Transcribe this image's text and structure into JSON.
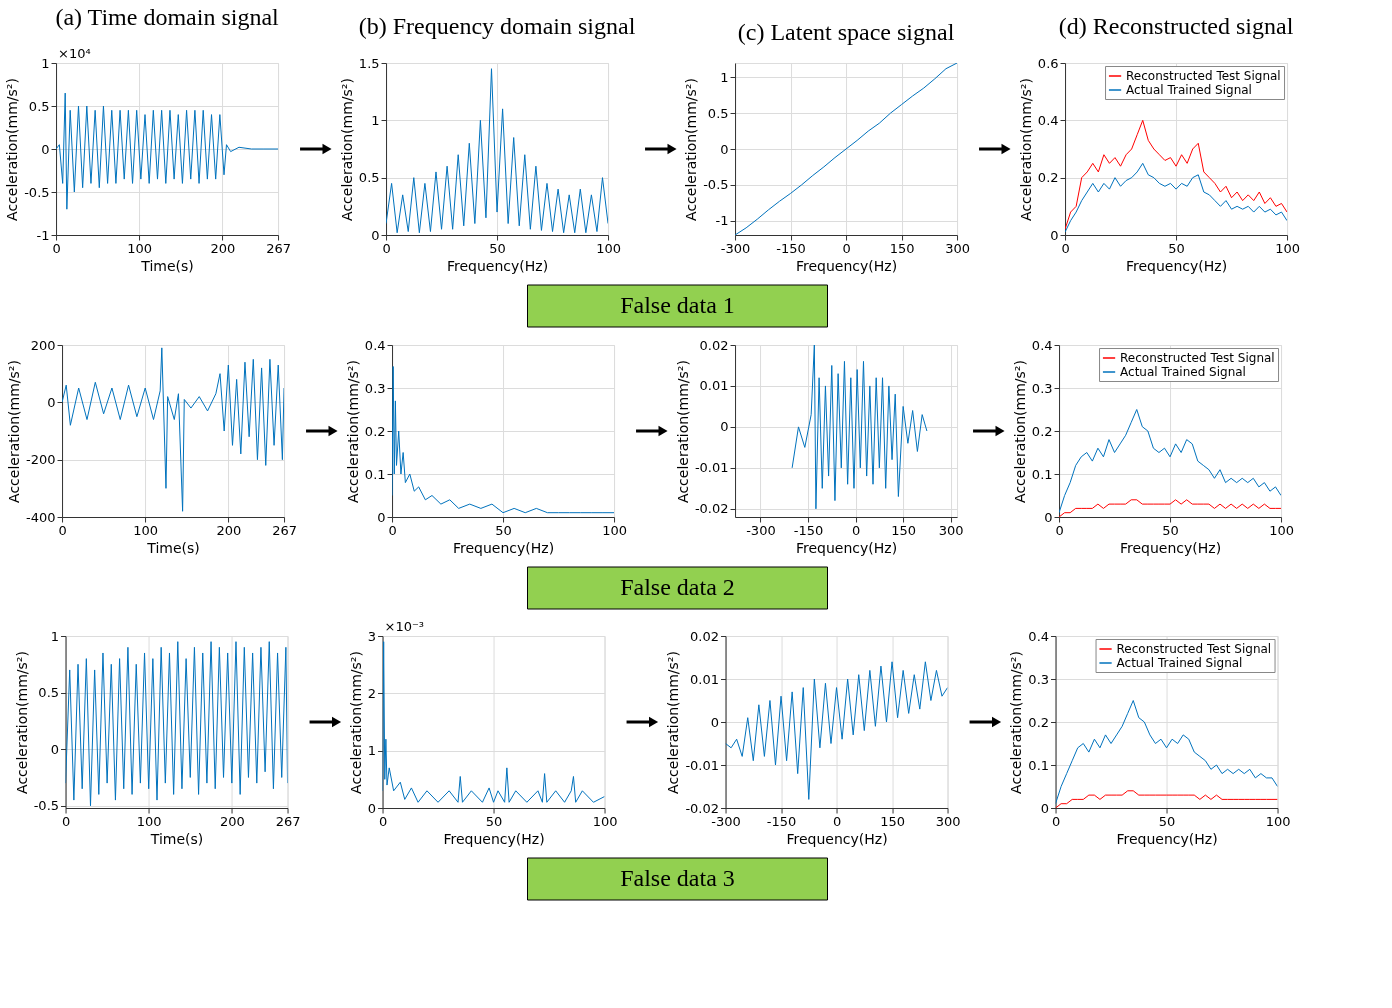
{
  "chart_data": [
    {
      "type": "line",
      "title": "(a) Time domain signal",
      "xlabel": "Time(s)",
      "ylabel": "Acceleration(mm/s²)",
      "annotations": [
        "×10⁴"
      ],
      "xlim": [
        0,
        267
      ],
      "xticks": [
        0,
        100,
        200,
        267
      ],
      "ylim": [
        -1,
        1
      ],
      "yticks": [
        -1,
        -0.5,
        0,
        0.5,
        1
      ],
      "grid": true,
      "series": [
        {
          "color": "#0072bd",
          "x": [
            0,
            4,
            8,
            11,
            13,
            17,
            22,
            27,
            32,
            37,
            42,
            47,
            52,
            57,
            62,
            67,
            72,
            77,
            82,
            87,
            92,
            97,
            102,
            107,
            112,
            117,
            122,
            127,
            132,
            137,
            142,
            147,
            152,
            157,
            162,
            167,
            172,
            177,
            182,
            187,
            192,
            197,
            202,
            205,
            210,
            220,
            235,
            250,
            267
          ],
          "values": [
            0,
            0.05,
            -0.4,
            0.65,
            -0.7,
            0.45,
            -0.5,
            0.5,
            -0.45,
            0.5,
            -0.4,
            0.45,
            -0.45,
            0.5,
            -0.4,
            0.45,
            -0.4,
            0.45,
            -0.35,
            0.45,
            -0.4,
            0.45,
            -0.35,
            0.4,
            -0.4,
            0.45,
            -0.35,
            0.45,
            -0.4,
            0.45,
            -0.35,
            0.4,
            -0.4,
            0.45,
            -0.35,
            0.45,
            -0.4,
            0.45,
            -0.35,
            0.4,
            -0.35,
            0.4,
            -0.3,
            0.05,
            -0.03,
            0.02,
            0,
            0,
            0
          ]
        }
      ]
    },
    {
      "type": "line",
      "title": "(b) Frequency domain signal",
      "xlabel": "Frequency(Hz)",
      "ylabel": "Acceleration(mm/s²)",
      "xlim": [
        0,
        100
      ],
      "xticks": [
        0,
        50,
        100
      ],
      "ylim": [
        0,
        1.5
      ],
      "yticks": [
        0,
        0.5,
        1,
        1.5
      ],
      "grid": true,
      "x": [
        0,
        2.5,
        5,
        7.5,
        10,
        12.5,
        15,
        17.5,
        20,
        22.5,
        25,
        27.5,
        30,
        32.5,
        35,
        37.5,
        40,
        42.5,
        45,
        47.5,
        50,
        52.5,
        55,
        57.5,
        60,
        62.5,
        65,
        67.5,
        70,
        72.5,
        75,
        77.5,
        80,
        82.5,
        85,
        87.5,
        90,
        92.5,
        95,
        97.5,
        100
      ],
      "series": [
        {
          "color": "#0072bd",
          "values": [
            0.1,
            0.45,
            0.02,
            0.35,
            0.03,
            0.5,
            0.02,
            0.45,
            0.03,
            0.55,
            0.05,
            0.6,
            0.05,
            0.7,
            0.08,
            0.8,
            0.1,
            1.0,
            0.15,
            1.45,
            0.2,
            1.1,
            0.1,
            0.85,
            0.08,
            0.7,
            0.05,
            0.6,
            0.04,
            0.45,
            0.03,
            0.4,
            0.02,
            0.35,
            0.02,
            0.4,
            0.02,
            0.35,
            0.03,
            0.5,
            0.1
          ]
        }
      ]
    },
    {
      "type": "line",
      "title": "(c) Latent space signal",
      "xlabel": "Frequency(Hz)",
      "ylabel": "Acceleration(mm/s²)",
      "xlim": [
        -300,
        300
      ],
      "xticks": [
        -300,
        -150,
        0,
        150,
        300
      ],
      "ylim": [
        -1.2,
        1.2
      ],
      "yticks": [
        -1,
        -0.5,
        0,
        0.5,
        1
      ],
      "grid": true,
      "series": [
        {
          "color": "#0072bd",
          "x": [
            -300,
            -270,
            -240,
            -210,
            -180,
            -150,
            -120,
            -90,
            -60,
            -30,
            0,
            30,
            60,
            90,
            120,
            150,
            180,
            210,
            240,
            270,
            300
          ],
          "values": [
            -1.2,
            -1.1,
            -0.98,
            -0.85,
            -0.73,
            -0.62,
            -0.5,
            -0.37,
            -0.25,
            -0.12,
            0.0,
            0.12,
            0.25,
            0.36,
            0.5,
            0.62,
            0.74,
            0.85,
            0.98,
            1.12,
            1.2
          ]
        }
      ]
    },
    {
      "type": "line",
      "title": "(d) Reconstructed signal",
      "xlabel": "Frequency(Hz)",
      "ylabel": "Acceleration(mm/s²)",
      "xlim": [
        0,
        100
      ],
      "xticks": [
        0,
        50,
        100
      ],
      "ylim": [
        0,
        0.6
      ],
      "yticks": [
        0,
        0.2,
        0.4,
        0.6
      ],
      "grid": true,
      "legend": "top right",
      "x": [
        0,
        2.5,
        5,
        7.5,
        10,
        12.5,
        15,
        17.5,
        20,
        22.5,
        25,
        27.5,
        30,
        32.5,
        35,
        37.5,
        40,
        42.5,
        45,
        47.5,
        50,
        52.5,
        55,
        57.5,
        60,
        62.5,
        65,
        67.5,
        70,
        72.5,
        75,
        77.5,
        80,
        82.5,
        85,
        87.5,
        90,
        92.5,
        95,
        97.5,
        100
      ],
      "series": [
        {
          "name": "Reconstructed Test Signal",
          "color": "#ff0000",
          "values": [
            0.02,
            0.08,
            0.1,
            0.2,
            0.22,
            0.25,
            0.22,
            0.28,
            0.25,
            0.27,
            0.24,
            0.28,
            0.3,
            0.35,
            0.4,
            0.33,
            0.3,
            0.28,
            0.26,
            0.27,
            0.24,
            0.28,
            0.25,
            0.3,
            0.32,
            0.22,
            0.2,
            0.18,
            0.15,
            0.17,
            0.13,
            0.15,
            0.12,
            0.14,
            0.12,
            0.15,
            0.11,
            0.13,
            0.1,
            0.11,
            0.08
          ]
        },
        {
          "name": "Actual Trained Signal",
          "color": "#0072bd",
          "values": [
            0.01,
            0.05,
            0.08,
            0.12,
            0.15,
            0.18,
            0.15,
            0.18,
            0.16,
            0.2,
            0.17,
            0.19,
            0.2,
            0.22,
            0.25,
            0.21,
            0.2,
            0.18,
            0.17,
            0.18,
            0.16,
            0.18,
            0.17,
            0.2,
            0.21,
            0.15,
            0.14,
            0.12,
            0.1,
            0.12,
            0.09,
            0.1,
            0.09,
            0.1,
            0.08,
            0.1,
            0.08,
            0.09,
            0.07,
            0.08,
            0.05
          ]
        }
      ]
    },
    {
      "type": "other",
      "title": "False data 1",
      "color": "#92d050"
    },
    {
      "type": "line",
      "xlabel": "Time(s)",
      "ylabel": "Acceleration(mm/s²)",
      "xlim": [
        0,
        267
      ],
      "xticks": [
        0,
        100,
        200,
        267
      ],
      "ylim": [
        -400,
        200
      ],
      "yticks": [
        -400,
        -200,
        0,
        200
      ],
      "grid": true,
      "series": [
        {
          "color": "#0072bd",
          "x": [
            0,
            5,
            10,
            20,
            30,
            40,
            50,
            60,
            70,
            80,
            90,
            100,
            110,
            118,
            120,
            125,
            127,
            135,
            140,
            145,
            147,
            155,
            165,
            175,
            185,
            190,
            195,
            200,
            205,
            210,
            215,
            220,
            225,
            230,
            235,
            240,
            245,
            250,
            255,
            260,
            265,
            267
          ],
          "values": [
            0,
            60,
            -80,
            50,
            -60,
            70,
            -40,
            50,
            -60,
            60,
            -50,
            50,
            -60,
            40,
            190,
            -300,
            20,
            -60,
            30,
            -380,
            10,
            -20,
            20,
            -30,
            30,
            100,
            -100,
            130,
            -150,
            80,
            -180,
            140,
            -120,
            150,
            -200,
            120,
            -220,
            150,
            -150,
            130,
            -200,
            50
          ]
        }
      ]
    },
    {
      "type": "line",
      "xlabel": "Frequency(Hz)",
      "ylabel": "Acceleration(mm/s²)",
      "xlim": [
        0,
        100
      ],
      "xticks": [
        0,
        50,
        100
      ],
      "ylim": [
        0,
        0.4
      ],
      "yticks": [
        0,
        0.1,
        0.2,
        0.3,
        0.4
      ],
      "grid": true,
      "series": [
        {
          "color": "#0072bd",
          "x": [
            0,
            0.5,
            1,
            1.5,
            2,
            3,
            4,
            5,
            6,
            8,
            10,
            12,
            15,
            18,
            22,
            26,
            30,
            35,
            40,
            45,
            50,
            55,
            60,
            65,
            70,
            75,
            80,
            85,
            90,
            95,
            100
          ],
          "values": [
            0.05,
            0.35,
            0.1,
            0.27,
            0.12,
            0.2,
            0.1,
            0.15,
            0.08,
            0.1,
            0.06,
            0.07,
            0.04,
            0.05,
            0.03,
            0.04,
            0.02,
            0.03,
            0.02,
            0.03,
            0.01,
            0.02,
            0.01,
            0.02,
            0.01,
            0.01,
            0.01,
            0.01,
            0.01,
            0.01,
            0.01
          ]
        }
      ]
    },
    {
      "type": "line",
      "xlabel": "Frequency(Hz)",
      "ylabel": "Acceleration(mm/s²)",
      "xlim": [
        -380,
        320
      ],
      "xticks": [
        -300,
        -150,
        0,
        150,
        300
      ],
      "ylim": [
        -0.022,
        0.02
      ],
      "yticks": [
        -0.02,
        -0.01,
        0,
        0.01,
        0.02
      ],
      "grid": true,
      "series": [
        {
          "color": "#0072bd",
          "x": [
            -200,
            -180,
            -160,
            -140,
            -130,
            -125,
            -115,
            -105,
            -95,
            -85,
            -75,
            -65,
            -55,
            -45,
            -35,
            -25,
            -15,
            -5,
            5,
            15,
            25,
            35,
            45,
            55,
            65,
            75,
            85,
            95,
            105,
            115,
            125,
            135,
            150,
            165,
            180,
            195,
            210,
            225
          ],
          "values": [
            -0.01,
            0.0,
            -0.005,
            0.003,
            0.02,
            -0.02,
            0.012,
            -0.015,
            0.01,
            -0.012,
            0.015,
            -0.018,
            0.013,
            -0.01,
            0.016,
            -0.014,
            0.012,
            -0.015,
            0.014,
            -0.01,
            0.016,
            -0.012,
            0.01,
            -0.014,
            0.012,
            -0.01,
            0.012,
            -0.015,
            0.01,
            -0.008,
            0.008,
            -0.017,
            0.005,
            -0.004,
            0.004,
            -0.006,
            0.003,
            -0.001
          ]
        }
      ]
    },
    {
      "type": "line",
      "xlabel": "Frequency(Hz)",
      "ylabel": "Acceleration(mm/s²)",
      "xlim": [
        0,
        100
      ],
      "xticks": [
        0,
        50,
        100
      ],
      "ylim": [
        0,
        0.4
      ],
      "yticks": [
        0,
        0.1,
        0.2,
        0.3,
        0.4
      ],
      "grid": true,
      "legend": "top right",
      "x": [
        0,
        2.5,
        5,
        7.5,
        10,
        12.5,
        15,
        17.5,
        20,
        22.5,
        25,
        27.5,
        30,
        32.5,
        35,
        37.5,
        40,
        42.5,
        45,
        47.5,
        50,
        52.5,
        55,
        57.5,
        60,
        62.5,
        65,
        67.5,
        70,
        72.5,
        75,
        77.5,
        80,
        82.5,
        85,
        87.5,
        90,
        92.5,
        95,
        97.5,
        100
      ],
      "series": [
        {
          "name": "Reconstructed Test Signal",
          "color": "#ff0000",
          "values": [
            0.0,
            0.01,
            0.01,
            0.02,
            0.02,
            0.02,
            0.02,
            0.03,
            0.02,
            0.03,
            0.03,
            0.03,
            0.03,
            0.04,
            0.04,
            0.03,
            0.03,
            0.03,
            0.03,
            0.03,
            0.03,
            0.04,
            0.03,
            0.04,
            0.03,
            0.03,
            0.03,
            0.03,
            0.02,
            0.03,
            0.02,
            0.03,
            0.02,
            0.03,
            0.02,
            0.03,
            0.02,
            0.03,
            0.02,
            0.02,
            0.02
          ]
        },
        {
          "name": "Actual Trained Signal",
          "color": "#0072bd",
          "values": [
            0.01,
            0.05,
            0.08,
            0.12,
            0.14,
            0.15,
            0.13,
            0.16,
            0.14,
            0.18,
            0.15,
            0.17,
            0.19,
            0.22,
            0.25,
            0.21,
            0.2,
            0.16,
            0.15,
            0.16,
            0.14,
            0.17,
            0.15,
            0.18,
            0.17,
            0.13,
            0.12,
            0.11,
            0.09,
            0.11,
            0.08,
            0.09,
            0.08,
            0.09,
            0.08,
            0.09,
            0.07,
            0.08,
            0.06,
            0.07,
            0.05
          ]
        }
      ]
    },
    {
      "type": "other",
      "title": "False data 2",
      "color": "#92d050"
    },
    {
      "type": "line",
      "xlabel": "Time(s)",
      "ylabel": "Acceleration(mm/s²)",
      "xlim": [
        0,
        267
      ],
      "xticks": [
        0,
        100,
        200,
        267
      ],
      "ylim": [
        -0.52,
        1
      ],
      "yticks": [
        -0.5,
        0,
        0.5,
        1
      ],
      "grid": true,
      "series": [
        {
          "color": "#0072bd",
          "x": [
            0,
            5,
            10,
            15,
            20,
            25,
            30,
            35,
            40,
            45,
            50,
            55,
            60,
            65,
            70,
            75,
            80,
            85,
            90,
            95,
            100,
            105,
            110,
            115,
            120,
            125,
            130,
            135,
            140,
            145,
            150,
            155,
            160,
            165,
            170,
            175,
            180,
            185,
            190,
            195,
            200,
            205,
            210,
            215,
            220,
            225,
            230,
            235,
            240,
            245,
            250,
            255,
            260,
            265,
            267
          ],
          "values": [
            -0.3,
            0.7,
            -0.45,
            0.75,
            -0.35,
            0.8,
            -0.5,
            0.7,
            -0.4,
            0.85,
            -0.3,
            0.75,
            -0.45,
            0.8,
            -0.35,
            0.9,
            -0.4,
            0.75,
            -0.3,
            0.85,
            -0.35,
            0.8,
            -0.45,
            0.9,
            -0.3,
            0.85,
            -0.4,
            0.95,
            -0.35,
            0.8,
            -0.25,
            0.9,
            -0.4,
            0.85,
            -0.3,
            0.95,
            -0.35,
            0.9,
            -0.25,
            0.85,
            -0.3,
            0.95,
            -0.4,
            0.9,
            -0.25,
            0.85,
            -0.3,
            0.9,
            -0.2,
            0.95,
            -0.35,
            0.85,
            -0.25,
            0.9,
            -0.3
          ]
        }
      ]
    },
    {
      "type": "line",
      "xlabel": "Frequency(Hz)",
      "ylabel": "Acceleration(mm/s²)",
      "annotations": [
        "×10⁻³"
      ],
      "xlim": [
        0,
        100
      ],
      "xticks": [
        0,
        50,
        100
      ],
      "ylim": [
        0,
        3
      ],
      "yticks": [
        0,
        1,
        2,
        3
      ],
      "grid": true,
      "series": [
        {
          "color": "#0072bd",
          "x": [
            0,
            0.5,
            1,
            1.5,
            2,
            3,
            5,
            8,
            10,
            13,
            16,
            20,
            25,
            30,
            34,
            35,
            36,
            40,
            45,
            48,
            50,
            52,
            55,
            56,
            57,
            60,
            65,
            70,
            72,
            73,
            74,
            78,
            82,
            85,
            86,
            87,
            90,
            95,
            100
          ],
          "values": [
            0.3,
            2.9,
            0.5,
            1.2,
            0.4,
            0.7,
            0.3,
            0.45,
            0.15,
            0.35,
            0.1,
            0.3,
            0.1,
            0.3,
            0.1,
            0.55,
            0.1,
            0.3,
            0.1,
            0.35,
            0.1,
            0.3,
            0.1,
            0.7,
            0.1,
            0.3,
            0.1,
            0.3,
            0.1,
            0.6,
            0.1,
            0.3,
            0.1,
            0.3,
            0.55,
            0.1,
            0.3,
            0.1,
            0.2
          ]
        }
      ]
    },
    {
      "type": "line",
      "xlabel": "Frequency(Hz)",
      "ylabel": "Acceleration(mm/s²)",
      "xlim": [
        -300,
        300
      ],
      "xticks": [
        -300,
        -150,
        0,
        150,
        300
      ],
      "ylim": [
        -0.02,
        0.02
      ],
      "yticks": [
        -0.02,
        -0.01,
        0,
        0.01,
        0.02
      ],
      "grid": true,
      "series": [
        {
          "color": "#0072bd",
          "x": [
            -300,
            -285,
            -270,
            -255,
            -240,
            -225,
            -210,
            -195,
            -180,
            -165,
            -150,
            -135,
            -120,
            -105,
            -90,
            -75,
            -60,
            -45,
            -30,
            -15,
            0,
            15,
            30,
            45,
            60,
            75,
            90,
            105,
            120,
            135,
            150,
            165,
            180,
            195,
            210,
            225,
            240,
            255,
            270,
            285,
            300
          ],
          "values": [
            -0.005,
            -0.006,
            -0.004,
            -0.008,
            0.001,
            -0.009,
            0.004,
            -0.008,
            0.005,
            -0.01,
            0.006,
            -0.009,
            0.007,
            -0.012,
            0.008,
            -0.018,
            0.01,
            -0.006,
            0.009,
            -0.005,
            0.008,
            -0.004,
            0.01,
            -0.003,
            0.011,
            -0.002,
            0.012,
            -0.001,
            0.013,
            0.0,
            0.014,
            0.001,
            0.012,
            0.002,
            0.011,
            0.003,
            0.014,
            0.005,
            0.012,
            0.006,
            0.008
          ]
        }
      ]
    },
    {
      "type": "line",
      "xlabel": "Frequency(Hz)",
      "ylabel": "Acceleration(mm/s²)",
      "xlim": [
        0,
        100
      ],
      "xticks": [
        0,
        50,
        100
      ],
      "ylim": [
        0,
        0.4
      ],
      "yticks": [
        0,
        0.1,
        0.2,
        0.3,
        0.4
      ],
      "grid": true,
      "legend": "top right",
      "x": [
        0,
        2.5,
        5,
        7.5,
        10,
        12.5,
        15,
        17.5,
        20,
        22.5,
        25,
        27.5,
        30,
        32.5,
        35,
        37.5,
        40,
        42.5,
        45,
        47.5,
        50,
        52.5,
        55,
        57.5,
        60,
        62.5,
        65,
        67.5,
        70,
        72.5,
        75,
        77.5,
        80,
        82.5,
        85,
        87.5,
        90,
        92.5,
        95,
        97.5,
        100
      ],
      "series": [
        {
          "name": "Reconstructed Test Signal",
          "color": "#ff0000",
          "values": [
            0.0,
            0.01,
            0.01,
            0.02,
            0.02,
            0.02,
            0.03,
            0.03,
            0.02,
            0.03,
            0.03,
            0.03,
            0.03,
            0.04,
            0.04,
            0.03,
            0.03,
            0.03,
            0.03,
            0.03,
            0.03,
            0.03,
            0.03,
            0.03,
            0.03,
            0.03,
            0.02,
            0.03,
            0.02,
            0.03,
            0.02,
            0.02,
            0.02,
            0.02,
            0.02,
            0.02,
            0.02,
            0.02,
            0.02,
            0.02,
            0.02
          ]
        },
        {
          "name": "Actual Trained Signal",
          "color": "#0072bd",
          "values": [
            0.01,
            0.05,
            0.08,
            0.11,
            0.14,
            0.15,
            0.13,
            0.16,
            0.14,
            0.17,
            0.15,
            0.17,
            0.19,
            0.22,
            0.25,
            0.21,
            0.2,
            0.17,
            0.15,
            0.16,
            0.14,
            0.16,
            0.15,
            0.17,
            0.16,
            0.13,
            0.12,
            0.11,
            0.09,
            0.1,
            0.08,
            0.09,
            0.08,
            0.09,
            0.08,
            0.09,
            0.07,
            0.08,
            0.07,
            0.07,
            0.05
          ]
        }
      ]
    },
    {
      "type": "other",
      "title": "False data 3",
      "color": "#92d050"
    }
  ]
}
